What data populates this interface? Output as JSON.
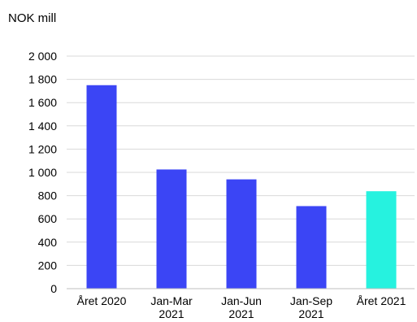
{
  "chart_data": {
    "type": "bar",
    "unit_label": "NOK mill",
    "categories": [
      [
        "Året 2020"
      ],
      [
        "Jan-Mar",
        "2021"
      ],
      [
        "Jan-Jun",
        "2021"
      ],
      [
        "Jan-Sep",
        "2021"
      ],
      [
        "Året 2021"
      ]
    ],
    "values": [
      1750,
      1025,
      940,
      710,
      838
    ],
    "bar_colors": [
      "#3b45f5",
      "#3b45f5",
      "#3b45f5",
      "#3b45f5",
      "#26f2df"
    ],
    "ylim": [
      0,
      2000
    ],
    "yticks": [
      0,
      200,
      400,
      600,
      800,
      1000,
      1200,
      1400,
      1600,
      1800,
      2000
    ],
    "ytick_labels": [
      "0",
      "200",
      "400",
      "600",
      "800",
      "1 000",
      "1 200",
      "1 400",
      "1 600",
      "1 800",
      "2 000"
    ],
    "grid": true,
    "gridline_color": "#d9d9d9",
    "axis_color": "#bfbfbf"
  }
}
